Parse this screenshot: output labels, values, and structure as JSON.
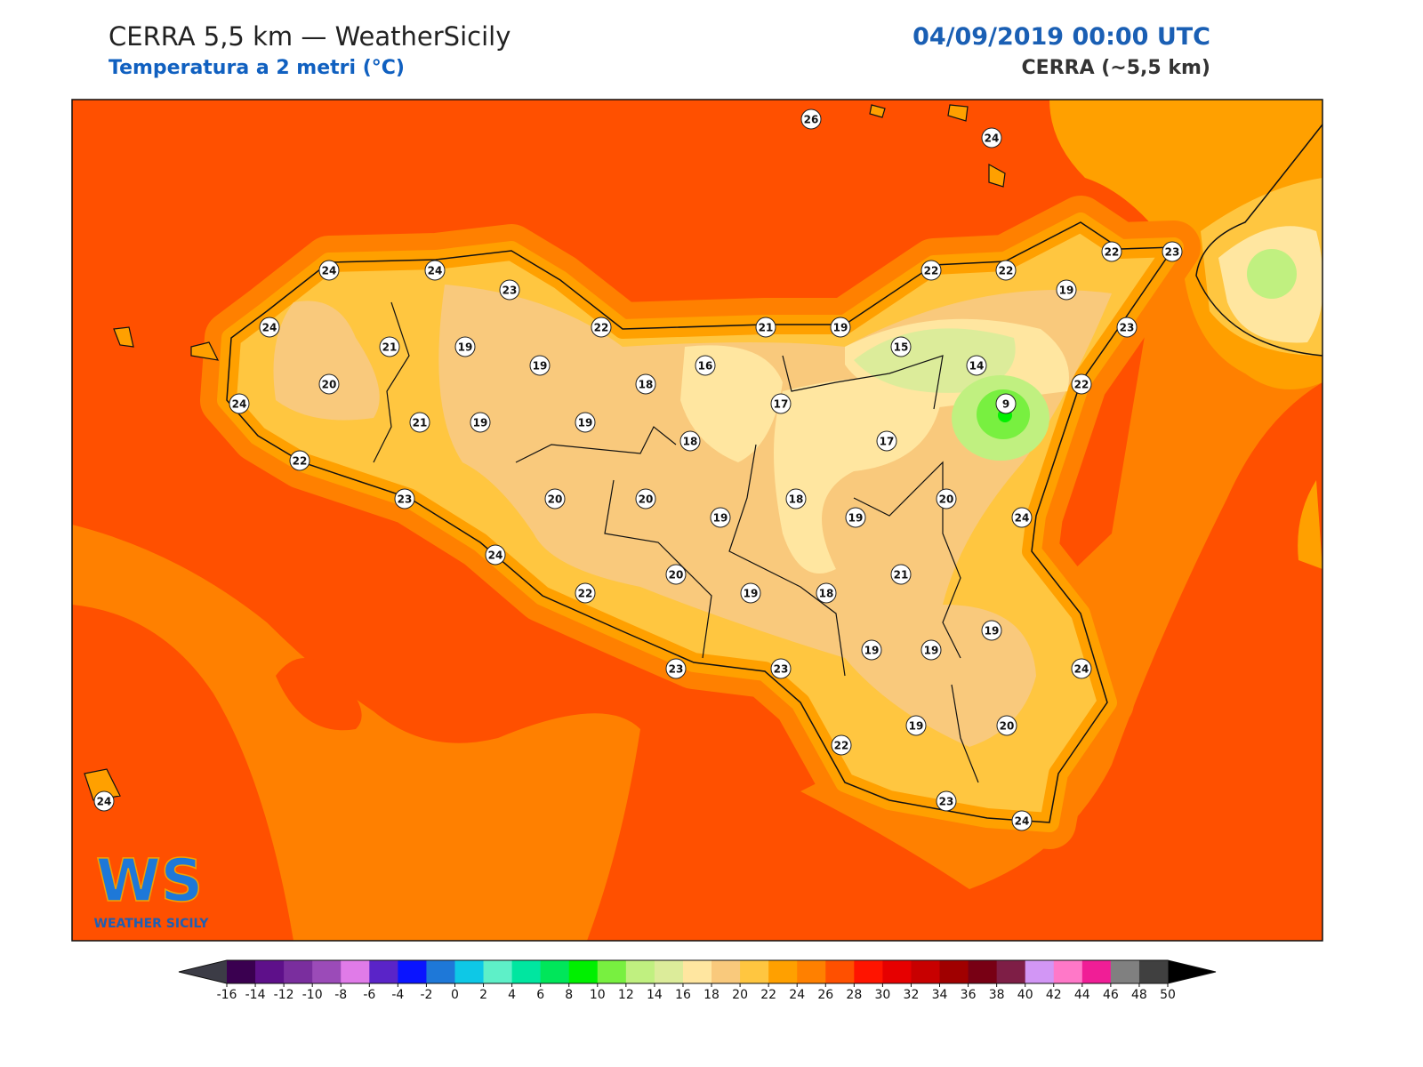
{
  "header": {
    "title": "CERRA 5,5 km — WeatherSicily",
    "subtitle": "Temperatura a 2 metri (°C)",
    "datetime": "04/09/2019 00:00 UTC",
    "model": "CERRA (~5,5 km)"
  },
  "logo": {
    "mark": "WS",
    "text": "WEATHER SICILY"
  },
  "stations": [
    26,
    24,
    24,
    24,
    23,
    22,
    23,
    22,
    22,
    19,
    24,
    21,
    19,
    19,
    22,
    21,
    19,
    15,
    23,
    20,
    18,
    16,
    14,
    22,
    24,
    21,
    19,
    19,
    17,
    9,
    18,
    17,
    22,
    23,
    20,
    20,
    19,
    18,
    19,
    20,
    24,
    24,
    21,
    20,
    22,
    19,
    18,
    19,
    19,
    19,
    23,
    23,
    24,
    19,
    20,
    22,
    23,
    24,
    24
  ],
  "colorbar": {
    "ticks": [
      -16,
      -14,
      -12,
      -10,
      -8,
      -6,
      -4,
      -2,
      0,
      2,
      4,
      6,
      8,
      10,
      12,
      14,
      16,
      18,
      20,
      22,
      24,
      26,
      28,
      30,
      32,
      34,
      36,
      38,
      40,
      42,
      44,
      46,
      48,
      50
    ],
    "colors": [
      "#3a0050",
      "#5e108a",
      "#7a2e9e",
      "#9b4bb8",
      "#e07be8",
      "#5a24c8",
      "#0a14ff",
      "#1e78d8",
      "#0ec8e6",
      "#5ef0c8",
      "#00e6a0",
      "#00e65a",
      "#00f000",
      "#78f040",
      "#c0f080",
      "#dcec9a",
      "#ffe6a0",
      "#f9c97c",
      "#ffc640",
      "#ffa000",
      "#ff8000",
      "#ff5000",
      "#ff1400",
      "#e60000",
      "#c80000",
      "#a00000",
      "#780014",
      "#7e1e46",
      "#d296f5",
      "#ff78c8",
      "#f01e96",
      "#808080",
      "#404040"
    ],
    "under_color": "#3c3c46",
    "over_color": "#000000"
  }
}
